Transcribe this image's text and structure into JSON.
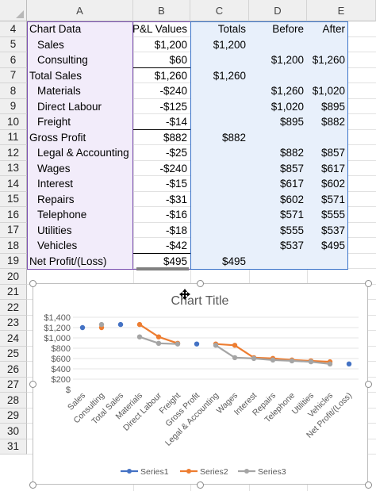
{
  "columns": [
    "A",
    "B",
    "C",
    "D",
    "E"
  ],
  "rows": [
    {
      "num": "4",
      "label": "Chart Data",
      "indent": false,
      "b": "P&L Values",
      "c": "Totals",
      "d": "Before",
      "e": "After",
      "header": true
    },
    {
      "num": "5",
      "label": "Sales",
      "indent": true,
      "b": "$1,200",
      "c": "$1,200",
      "d": "",
      "e": ""
    },
    {
      "num": "6",
      "label": "Consulting",
      "indent": true,
      "b": "$60",
      "c": "",
      "d": "$1,200",
      "e": "$1,260"
    },
    {
      "num": "7",
      "label": "Total Sales",
      "indent": false,
      "b": "$1,260",
      "c": "$1,260",
      "d": "",
      "e": ""
    },
    {
      "num": "8",
      "label": "Materials",
      "indent": true,
      "b": "-$240",
      "c": "",
      "d": "$1,260",
      "e": "$1,020"
    },
    {
      "num": "9",
      "label": "Direct Labour",
      "indent": true,
      "b": "-$125",
      "c": "",
      "d": "$1,020",
      "e": "$895"
    },
    {
      "num": "10",
      "label": "Freight",
      "indent": true,
      "b": "-$14",
      "c": "",
      "d": "$895",
      "e": "$882"
    },
    {
      "num": "11",
      "label": "Gross Profit",
      "indent": false,
      "b": "$882",
      "c": "$882",
      "d": "",
      "e": ""
    },
    {
      "num": "12",
      "label": "Legal & Accounting",
      "indent": true,
      "b": "-$25",
      "c": "",
      "d": "$882",
      "e": "$857"
    },
    {
      "num": "13",
      "label": "Wages",
      "indent": true,
      "b": "-$240",
      "c": "",
      "d": "$857",
      "e": "$617"
    },
    {
      "num": "14",
      "label": "Interest",
      "indent": true,
      "b": "-$15",
      "c": "",
      "d": "$617",
      "e": "$602"
    },
    {
      "num": "15",
      "label": "Repairs",
      "indent": true,
      "b": "-$31",
      "c": "",
      "d": "$602",
      "e": "$571"
    },
    {
      "num": "16",
      "label": "Telephone",
      "indent": true,
      "b": "-$16",
      "c": "",
      "d": "$571",
      "e": "$555"
    },
    {
      "num": "17",
      "label": "Utilities",
      "indent": true,
      "b": "-$18",
      "c": "",
      "d": "$555",
      "e": "$537"
    },
    {
      "num": "18",
      "label": "Vehicles",
      "indent": true,
      "b": "-$42",
      "c": "",
      "d": "$537",
      "e": "$495"
    },
    {
      "num": "19",
      "label": "Net Profit/(Loss)",
      "indent": false,
      "b": "$495",
      "c": "$495",
      "d": "",
      "e": ""
    }
  ],
  "empty_rows": [
    "20",
    "21",
    "22",
    "23",
    "24",
    "25",
    "26",
    "27",
    "28",
    "29",
    "30",
    "31"
  ],
  "chart_data": {
    "type": "line",
    "title": "Chart Title",
    "categories": [
      "Sales",
      "Consulting",
      "Total Sales",
      "Materials",
      "Direct Labour",
      "Freight",
      "Gross Profit",
      "Legal & Accounting",
      "Wages",
      "Interest",
      "Repairs",
      "Telephone",
      "Utilities",
      "Vehicles",
      "Net Profit/(Loss)"
    ],
    "y_ticks": [
      "$",
      "$200",
      "$400",
      "$600",
      "$800",
      "$1,000",
      "$1,200",
      "$1,400"
    ],
    "ylim": [
      0,
      1400
    ],
    "series": [
      {
        "name": "Series1",
        "color": "#4472c4",
        "markers_only": true,
        "values": [
          1200,
          null,
          1260,
          null,
          null,
          null,
          882,
          null,
          null,
          null,
          null,
          null,
          null,
          null,
          495
        ]
      },
      {
        "name": "Series2",
        "color": "#ed7d31",
        "values": [
          null,
          1200,
          null,
          1260,
          1020,
          895,
          null,
          882,
          857,
          617,
          602,
          571,
          555,
          537,
          null
        ]
      },
      {
        "name": "Series3",
        "color": "#a5a5a5",
        "values": [
          null,
          1260,
          null,
          1020,
          895,
          882,
          null,
          857,
          617,
          602,
          571,
          555,
          537,
          495,
          null
        ]
      }
    ],
    "legend": "bottom"
  },
  "colors": {
    "purple_sel": "#7b4fb0",
    "blue_sel": "#3b74c9"
  }
}
